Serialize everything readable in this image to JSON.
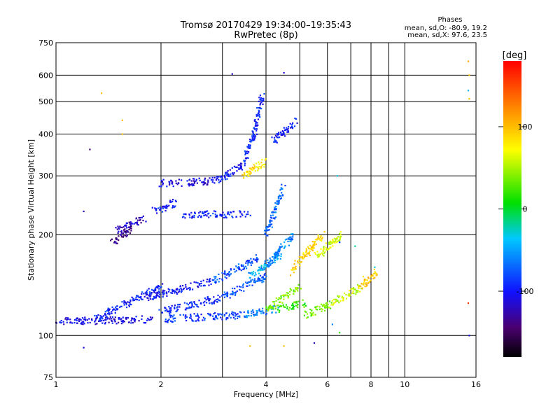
{
  "chart_data": {
    "type": "scatter",
    "title": "Tromsø 20170429 19:34:00–19:35:43",
    "subtitle": "RwPretec (8p)",
    "xlabel": "Frequency [MHz]",
    "ylabel": "Stationary phase Virtual Height [km]",
    "x_scale": "log",
    "y_scale": "log",
    "xlim": [
      1,
      16
    ],
    "ylim": [
      75,
      750
    ],
    "x_ticks": [
      1,
      2,
      4,
      6,
      8,
      10,
      16
    ],
    "y_ticks": [
      75,
      100,
      200,
      300,
      400,
      500,
      600,
      750
    ],
    "x_grid": [
      1,
      2,
      3,
      4,
      5,
      6,
      7,
      8,
      9,
      10,
      16
    ],
    "y_grid": [
      75,
      100,
      200,
      300,
      400,
      500,
      600,
      750
    ],
    "grid": true,
    "stats": {
      "heading": "Phases",
      "line_o": "mean, sd,O: -80.9, 19.2",
      "line_x": "mean, sd,X:  97.6, 23.5"
    },
    "colorbar": {
      "label": "[deg]",
      "range": [
        -180,
        180
      ],
      "ticks": [
        100,
        0,
        -100
      ],
      "colormap": "rainbow (black→violet→blue→cyan→green→yellow→orange→red)"
    },
    "series": [
      {
        "segments": [
          [
            1.0,
            110,
            1.9,
            112,
            -110
          ],
          [
            1.3,
            112,
            2.0,
            140,
            -95
          ],
          [
            2.0,
            112,
            3.4,
            115,
            -85
          ],
          [
            3.4,
            115,
            4.3,
            120,
            -60
          ],
          [
            4.3,
            120,
            5.2,
            125,
            20
          ],
          [
            2.0,
            118,
            3.0,
            130,
            -95
          ],
          [
            3.0,
            130,
            4.0,
            150,
            -75
          ],
          [
            3.6,
            150,
            4.4,
            175,
            -45
          ],
          [
            1.8,
            130,
            2.8,
            145,
            -100
          ],
          [
            2.8,
            145,
            3.8,
            170,
            -80
          ],
          [
            4.0,
            120,
            5.0,
            140,
            40
          ],
          [
            5.2,
            115,
            6.2,
            125,
            40
          ],
          [
            6.2,
            125,
            7.5,
            140,
            60
          ],
          [
            7.5,
            140,
            8.3,
            155,
            100
          ],
          [
            1.5,
            205,
            1.8,
            225,
            -120
          ],
          [
            1.45,
            190,
            1.65,
            210,
            -140
          ],
          [
            1.9,
            235,
            2.2,
            250,
            -100
          ],
          [
            2.0,
            285,
            2.9,
            290,
            -110
          ],
          [
            2.9,
            290,
            3.4,
            320,
            -100
          ],
          [
            3.4,
            320,
            3.7,
            400,
            -95
          ],
          [
            3.7,
            400,
            3.9,
            520,
            -95
          ],
          [
            3.4,
            300,
            4.0,
            330,
            85
          ],
          [
            2.3,
            230,
            3.6,
            230,
            -95
          ],
          [
            4.0,
            200,
            4.5,
            280,
            -70
          ],
          [
            4.0,
            160,
            4.8,
            200,
            -60
          ],
          [
            4.7,
            155,
            5.8,
            200,
            90
          ],
          [
            5.5,
            170,
            6.6,
            200,
            60
          ],
          [
            4.2,
            380,
            4.9,
            440,
            -100
          ]
        ]
      },
      {
        "points": [
          [
            1.35,
            530,
            100
          ],
          [
            1.55,
            440,
            100
          ],
          [
            1.55,
            400,
            100
          ],
          [
            1.25,
            360,
            -140
          ],
          [
            1.2,
            235,
            -120
          ],
          [
            1.2,
            92,
            -110
          ],
          [
            3.2,
            605,
            -120
          ],
          [
            4.5,
            610,
            -110
          ],
          [
            15.2,
            660,
            110
          ],
          [
            15.3,
            600,
            100
          ],
          [
            15.2,
            540,
            -40
          ],
          [
            15.3,
            510,
            100
          ],
          [
            15.2,
            125,
            160
          ],
          [
            15.3,
            100,
            -110
          ],
          [
            3.6,
            93,
            100
          ],
          [
            4.5,
            93,
            100
          ],
          [
            5.5,
            95,
            -120
          ],
          [
            6.4,
            300,
            -30
          ],
          [
            6.5,
            190,
            -90
          ],
          [
            7.2,
            185,
            -20
          ],
          [
            6.2,
            108,
            -60
          ],
          [
            6.5,
            102,
            20
          ],
          [
            7.6,
            150,
            80
          ],
          [
            8.2,
            160,
            -30
          ]
        ]
      }
    ]
  }
}
